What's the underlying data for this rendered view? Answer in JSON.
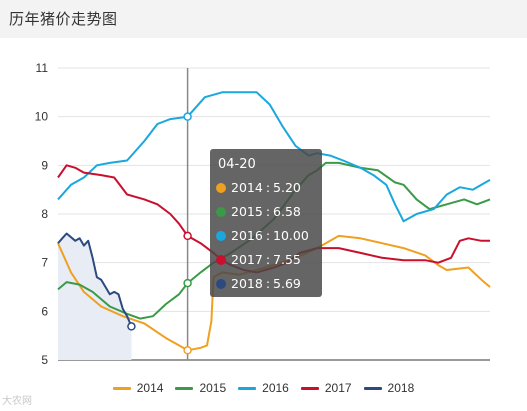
{
  "page": {
    "title": "历年猪价走势图"
  },
  "watermark": "大农网",
  "colors": {
    "2014": "#f0a020",
    "2015": "#3a9a47",
    "2016": "#1aa7de",
    "2017": "#c8102e",
    "2018": "#2c4a80"
  },
  "tooltip": {
    "date": "04-20",
    "rows": [
      {
        "year": "2014",
        "value": "5.20"
      },
      {
        "year": "2015",
        "value": "6.58"
      },
      {
        "year": "2016",
        "value": "10.00"
      },
      {
        "year": "2017",
        "value": "7.55"
      },
      {
        "year": "2018",
        "value": "5.69"
      }
    ]
  },
  "chart_data": {
    "type": "line",
    "title": "",
    "xlabel": "",
    "ylabel": "",
    "ylim": [
      5,
      11
    ],
    "yticks": [
      5,
      6,
      7,
      8,
      9,
      10,
      11
    ],
    "grid": true,
    "legend_position": "bottom",
    "crosshair_x": 0.3,
    "series": [
      {
        "name": "2014",
        "color": "#f0a020",
        "points": [
          [
            0.0,
            7.4
          ],
          [
            0.015,
            7.1
          ],
          [
            0.03,
            6.8
          ],
          [
            0.06,
            6.4
          ],
          [
            0.1,
            6.1
          ],
          [
            0.15,
            5.9
          ],
          [
            0.2,
            5.75
          ],
          [
            0.25,
            5.45
          ],
          [
            0.28,
            5.3
          ],
          [
            0.3,
            5.2
          ],
          [
            0.33,
            5.25
          ],
          [
            0.345,
            5.3
          ],
          [
            0.355,
            5.8
          ],
          [
            0.36,
            6.7
          ],
          [
            0.38,
            6.8
          ],
          [
            0.42,
            6.75
          ],
          [
            0.48,
            6.9
          ],
          [
            0.55,
            7.1
          ],
          [
            0.6,
            7.3
          ],
          [
            0.63,
            7.45
          ],
          [
            0.65,
            7.55
          ],
          [
            0.7,
            7.5
          ],
          [
            0.75,
            7.4
          ],
          [
            0.8,
            7.3
          ],
          [
            0.85,
            7.15
          ],
          [
            0.88,
            6.95
          ],
          [
            0.9,
            6.85
          ],
          [
            0.95,
            6.9
          ],
          [
            0.98,
            6.65
          ],
          [
            1.0,
            6.5
          ]
        ]
      },
      {
        "name": "2015",
        "color": "#3a9a47",
        "points": [
          [
            0.0,
            6.45
          ],
          [
            0.02,
            6.6
          ],
          [
            0.05,
            6.55
          ],
          [
            0.08,
            6.4
          ],
          [
            0.12,
            6.1
          ],
          [
            0.16,
            5.95
          ],
          [
            0.19,
            5.85
          ],
          [
            0.22,
            5.9
          ],
          [
            0.25,
            6.15
          ],
          [
            0.28,
            6.35
          ],
          [
            0.3,
            6.58
          ],
          [
            0.33,
            6.8
          ],
          [
            0.36,
            7.0
          ],
          [
            0.4,
            7.2
          ],
          [
            0.45,
            7.5
          ],
          [
            0.5,
            7.9
          ],
          [
            0.55,
            8.5
          ],
          [
            0.58,
            8.8
          ],
          [
            0.6,
            8.9
          ],
          [
            0.62,
            9.05
          ],
          [
            0.65,
            9.05
          ],
          [
            0.7,
            8.95
          ],
          [
            0.74,
            8.9
          ],
          [
            0.78,
            8.65
          ],
          [
            0.8,
            8.6
          ],
          [
            0.83,
            8.3
          ],
          [
            0.86,
            8.1
          ],
          [
            0.9,
            8.2
          ],
          [
            0.94,
            8.3
          ],
          [
            0.97,
            8.2
          ],
          [
            1.0,
            8.3
          ]
        ]
      },
      {
        "name": "2016",
        "color": "#1aa7de",
        "points": [
          [
            0.0,
            8.3
          ],
          [
            0.03,
            8.6
          ],
          [
            0.06,
            8.75
          ],
          [
            0.09,
            9.0
          ],
          [
            0.12,
            9.05
          ],
          [
            0.16,
            9.1
          ],
          [
            0.2,
            9.5
          ],
          [
            0.23,
            9.85
          ],
          [
            0.26,
            9.95
          ],
          [
            0.3,
            10.0
          ],
          [
            0.34,
            10.4
          ],
          [
            0.38,
            10.5
          ],
          [
            0.42,
            10.5
          ],
          [
            0.46,
            10.5
          ],
          [
            0.49,
            10.25
          ],
          [
            0.52,
            9.8
          ],
          [
            0.55,
            9.4
          ],
          [
            0.58,
            9.2
          ],
          [
            0.6,
            9.25
          ],
          [
            0.63,
            9.2
          ],
          [
            0.66,
            9.1
          ],
          [
            0.7,
            8.95
          ],
          [
            0.73,
            8.8
          ],
          [
            0.76,
            8.6
          ],
          [
            0.78,
            8.2
          ],
          [
            0.8,
            7.85
          ],
          [
            0.83,
            8.0
          ],
          [
            0.87,
            8.1
          ],
          [
            0.9,
            8.4
          ],
          [
            0.93,
            8.55
          ],
          [
            0.96,
            8.5
          ],
          [
            1.0,
            8.7
          ]
        ]
      },
      {
        "name": "2017",
        "color": "#c8102e",
        "points": [
          [
            0.0,
            8.75
          ],
          [
            0.02,
            9.0
          ],
          [
            0.04,
            8.95
          ],
          [
            0.06,
            8.85
          ],
          [
            0.1,
            8.8
          ],
          [
            0.13,
            8.75
          ],
          [
            0.16,
            8.4
          ],
          [
            0.2,
            8.3
          ],
          [
            0.23,
            8.2
          ],
          [
            0.26,
            8.0
          ],
          [
            0.28,
            7.8
          ],
          [
            0.3,
            7.55
          ],
          [
            0.33,
            7.4
          ],
          [
            0.36,
            7.2
          ],
          [
            0.38,
            7.05
          ],
          [
            0.4,
            6.95
          ],
          [
            0.43,
            6.85
          ],
          [
            0.46,
            6.8
          ],
          [
            0.5,
            6.9
          ],
          [
            0.53,
            7.0
          ],
          [
            0.56,
            7.2
          ],
          [
            0.6,
            7.3
          ],
          [
            0.65,
            7.3
          ],
          [
            0.7,
            7.2
          ],
          [
            0.75,
            7.1
          ],
          [
            0.8,
            7.05
          ],
          [
            0.85,
            7.05
          ],
          [
            0.88,
            7.0
          ],
          [
            0.91,
            7.1
          ],
          [
            0.93,
            7.45
          ],
          [
            0.95,
            7.5
          ],
          [
            0.98,
            7.45
          ],
          [
            1.0,
            7.45
          ]
        ]
      },
      {
        "name": "2018",
        "color": "#2c4a80",
        "points": [
          [
            0.0,
            7.4
          ],
          [
            0.01,
            7.5
          ],
          [
            0.02,
            7.6
          ],
          [
            0.04,
            7.45
          ],
          [
            0.05,
            7.5
          ],
          [
            0.06,
            7.35
          ],
          [
            0.07,
            7.45
          ],
          [
            0.08,
            7.1
          ],
          [
            0.09,
            6.7
          ],
          [
            0.1,
            6.65
          ],
          [
            0.12,
            6.35
          ],
          [
            0.13,
            6.4
          ],
          [
            0.14,
            6.35
          ],
          [
            0.15,
            6.05
          ],
          [
            0.16,
            5.9
          ],
          [
            0.17,
            5.69
          ]
        ]
      }
    ]
  },
  "legend": {
    "items": [
      "2014",
      "2015",
      "2016",
      "2017",
      "2018"
    ]
  }
}
